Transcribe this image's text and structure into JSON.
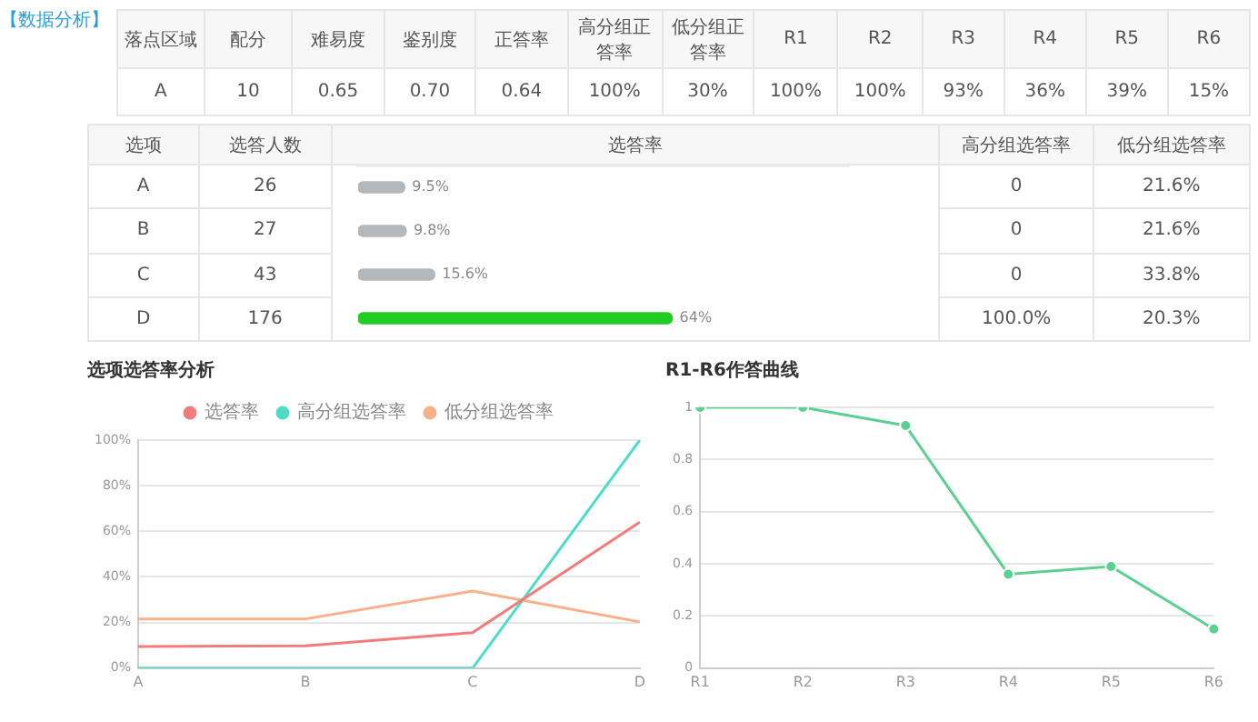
{
  "chart_data": [
    {
      "type": "other",
      "title": "【数据分析】",
      "categories": [
        "落点区域",
        "配分",
        "难易度",
        "鉴别度",
        "正答率",
        "高分组正答率",
        "低分组正答率",
        "R1",
        "R2",
        "R3",
        "R4",
        "R5",
        "R6"
      ],
      "annotations": [
        "A",
        "10",
        "0.65",
        "0.70",
        "0.64",
        "100%",
        "30%",
        "100%",
        "100%",
        "93%",
        "36%",
        "39%",
        "15%"
      ]
    },
    {
      "type": "bar",
      "orientation": "horizontal",
      "ylabel": "选项",
      "xlabel": "选答率",
      "categories": [
        "A",
        "B",
        "C",
        "D"
      ],
      "values": [
        9.5,
        9.8,
        15.6,
        64
      ],
      "value_labels": [
        "9.5%",
        "9.8%",
        "15.6%",
        "64%"
      ],
      "colors": [
        "#b4b8ba",
        "#b4b8ba",
        "#b4b8ba",
        "#22cc22"
      ],
      "xlim": [
        0,
        100
      ],
      "tick_labels": "y",
      "annotations": [
        "选答人数",
        "高分组选答率",
        "低分组选答率",
        "26",
        "0",
        "21.6%",
        "27",
        "0",
        "21.6%",
        "43",
        "0",
        "33.8%",
        "176",
        "100.0%",
        "20.3%"
      ]
    },
    {
      "type": "line",
      "title": "选项选答率分析",
      "categories": [
        "A",
        "B",
        "C",
        "D"
      ],
      "series": [
        {
          "name": "选答率",
          "color": "#f07c7c",
          "values": [
            9.5,
            9.8,
            15.6,
            64
          ]
        },
        {
          "name": "高分组选答率",
          "color": "#4edcc8",
          "values": [
            0,
            0,
            0,
            100
          ]
        },
        {
          "name": "低分组选答率",
          "color": "#f8b08a",
          "values": [
            21.6,
            21.6,
            33.8,
            20.3
          ]
        }
      ],
      "ylim": [
        0,
        100
      ],
      "yticks": [
        {
          "value": 0,
          "label": "0%"
        },
        {
          "value": 20,
          "label": "20%"
        },
        {
          "value": 40,
          "label": "40%"
        },
        {
          "value": 60,
          "label": "60%"
        },
        {
          "value": 80,
          "label": "80%"
        },
        {
          "value": 100,
          "label": "100%"
        }
      ],
      "grid": "y",
      "legend": "top",
      "marker": "none"
    },
    {
      "type": "line",
      "title": "R1-R6作答曲线",
      "categories": [
        "R1",
        "R2",
        "R3",
        "R4",
        "R5",
        "R6"
      ],
      "series": [
        {
          "color": "#5ccf92",
          "values": [
            1,
            1,
            0.93,
            0.36,
            0.39,
            0.15
          ]
        }
      ],
      "ylim": [
        0,
        1
      ],
      "yticks": [
        0,
        0.2,
        0.4,
        0.6,
        0.8,
        1
      ],
      "grid": "y",
      "legend": false,
      "marker": "circle"
    }
  ]
}
